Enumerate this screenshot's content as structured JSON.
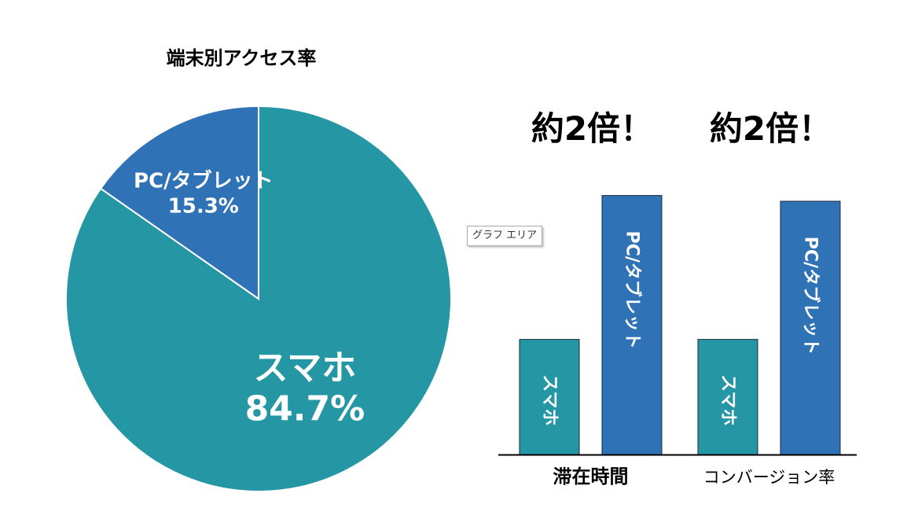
{
  "chart_data": [
    {
      "type": "pie",
      "title": "端末別アクセス率",
      "slices": [
        {
          "label": "スマホ",
          "value": 84.7,
          "value_label": "84.7%",
          "color": "#2596a3"
        },
        {
          "label": "PC/タブレット",
          "value": 15.3,
          "value_label": "15.3%",
          "color": "#2f72b6"
        }
      ]
    },
    {
      "type": "bar",
      "title": "",
      "categories": [
        "滞在時間",
        "コンバージョン率"
      ],
      "series": [
        {
          "name": "スマホ",
          "values": [
            1,
            1
          ],
          "color": "#2596a3"
        },
        {
          "name": "PC/タブレット",
          "values": [
            2.25,
            2.2
          ],
          "color": "#2f72b6"
        }
      ],
      "ylim": [
        0,
        2.5
      ],
      "annotations": [
        "約2倍！",
        "約2倍！"
      ]
    }
  ],
  "tooltip": {
    "text": "グラフ エリア"
  },
  "colors": {
    "sp": "#2596a3",
    "pc": "#2f72b6",
    "slice_border": "#ffffff",
    "axis": "#000000"
  }
}
